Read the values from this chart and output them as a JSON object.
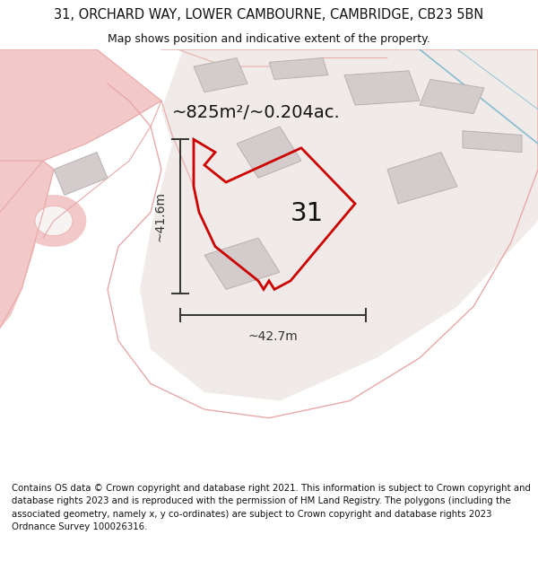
{
  "title_line1": "31, ORCHARD WAY, LOWER CAMBOURNE, CAMBRIDGE, CB23 5BN",
  "title_line2": "Map shows position and indicative extent of the property.",
  "area_label": "~825m²/~0.204ac.",
  "plot_number": "31",
  "dim_horizontal": "~42.7m",
  "dim_vertical": "~41.6m",
  "footer_text": "Contains OS data © Crown copyright and database right 2021. This information is subject to Crown copyright and database rights 2023 and is reproduced with the permission of HM Land Registry. The polygons (including the associated geometry, namely x, y co-ordinates) are subject to Crown copyright and database rights 2023 Ordnance Survey 100026316.",
  "bg_color": "#ffffff",
  "map_bg": "#f7f3f3",
  "road_color": "#f2c8c8",
  "road_edge": "#e8a8a8",
  "building_color": "#d4cccc",
  "building_edge": "#b8b0b0",
  "plot_edge": "#cc0000",
  "dim_color": "#333333",
  "title_color": "#111111",
  "footer_color": "#111111",
  "footer_bg": "#ffffff",
  "blue_line": "#88bbd0"
}
